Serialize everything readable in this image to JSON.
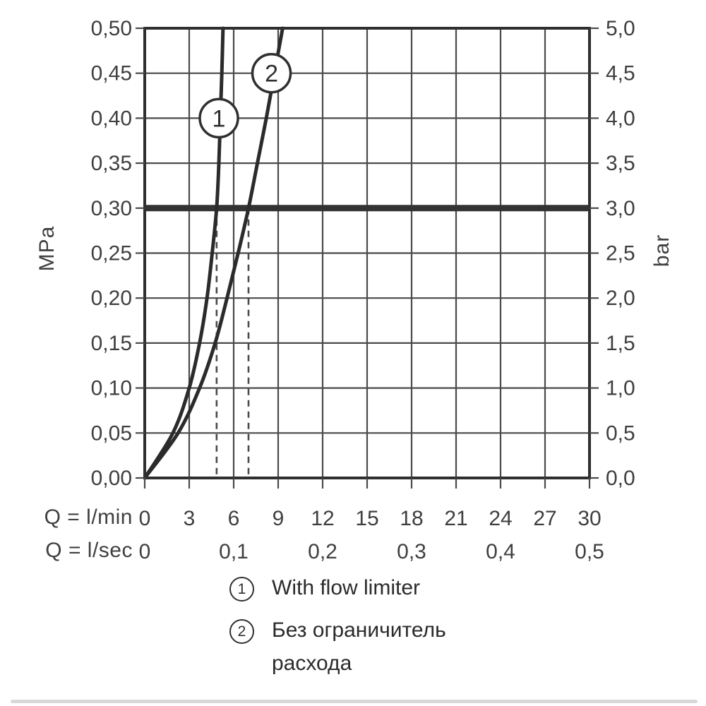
{
  "colors": {
    "ink": "#2f2f2f",
    "grid": "#4a4a4a",
    "text": "#3f3f3f",
    "curve": "#2b2b2b",
    "reference_line": "#333333",
    "divider": "#d8d8d8",
    "background": "#ffffff"
  },
  "chart_data": {
    "type": "line",
    "title": "",
    "x_axis": {
      "label_primary": "Q = l/min",
      "label_secondary": "Q = l/sec",
      "range_lmin": [
        0,
        30
      ],
      "ticks_lmin": [
        "0",
        "3",
        "6",
        "9",
        "12",
        "15",
        "18",
        "21",
        "24",
        "27",
        "30"
      ],
      "ticks_lmin_values": [
        0,
        3,
        6,
        9,
        12,
        15,
        18,
        21,
        24,
        27,
        30
      ],
      "ticks_lsec": [
        "0",
        "0,1",
        "0,2",
        "0,3",
        "0,4",
        "0,5"
      ],
      "ticks_lsec_at_lmin": [
        0,
        6,
        12,
        18,
        24,
        30
      ],
      "grid": true
    },
    "y_axis_left": {
      "unit": "MPa",
      "range_mpa": [
        0,
        0.5
      ],
      "ticks": [
        "0,50",
        "0,45",
        "0,40",
        "0,35",
        "0,30",
        "0,25",
        "0,20",
        "0,15",
        "0,10",
        "0,05",
        "0,00"
      ],
      "tick_values": [
        0.5,
        0.45,
        0.4,
        0.35,
        0.3,
        0.25,
        0.2,
        0.15,
        0.1,
        0.05,
        0.0
      ]
    },
    "y_axis_right": {
      "unit": "bar",
      "range_bar": [
        0,
        5
      ],
      "ticks": [
        "5,0",
        "4,5",
        "4,0",
        "3,5",
        "3,0",
        "2,5",
        "2,0",
        "1,5",
        "1,0",
        "0,5",
        "0,0"
      ]
    },
    "reference_line_mpa": 0.3,
    "dashed_drop_lines_lmin": [
      4.85,
      7.0
    ],
    "series": [
      {
        "id": "1",
        "name": "With flow limiter",
        "marker": {
          "symbol": "1",
          "at_lmin": 5.0,
          "at_mpa": 0.4
        },
        "points_lmin_mpa": [
          [
            0,
            0
          ],
          [
            1.9,
            0.05
          ],
          [
            3.0,
            0.1
          ],
          [
            3.7,
            0.15
          ],
          [
            4.2,
            0.2
          ],
          [
            4.55,
            0.25
          ],
          [
            4.85,
            0.3
          ],
          [
            5.0,
            0.35
          ],
          [
            5.1,
            0.4
          ],
          [
            5.2,
            0.45
          ],
          [
            5.28,
            0.5
          ]
        ]
      },
      {
        "id": "2",
        "name": "Без ограничитель расхода",
        "marker": {
          "symbol": "2",
          "at_lmin": 8.55,
          "at_mpa": 0.45
        },
        "points_lmin_mpa": [
          [
            0,
            0
          ],
          [
            2.25,
            0.05
          ],
          [
            3.7,
            0.1
          ],
          [
            4.75,
            0.15
          ],
          [
            5.55,
            0.2
          ],
          [
            6.3,
            0.25
          ],
          [
            7.0,
            0.3
          ],
          [
            7.6,
            0.35
          ],
          [
            8.2,
            0.4
          ],
          [
            8.75,
            0.45
          ],
          [
            9.3,
            0.5
          ]
        ]
      }
    ],
    "legend_position": "bottom"
  },
  "legend": {
    "item1": {
      "symbol": "1",
      "label": "With flow limiter"
    },
    "item2": {
      "symbol": "2",
      "label_line1": "Без ограничитель",
      "label_line2": "расхода"
    }
  }
}
